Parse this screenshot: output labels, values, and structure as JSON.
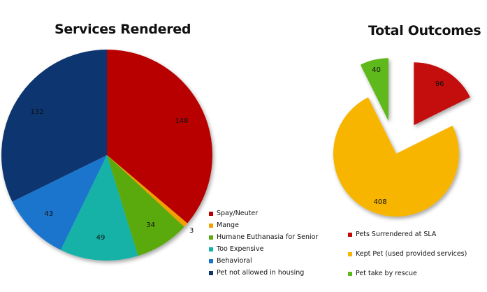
{
  "chart_data": [
    {
      "type": "pie",
      "title": "Services Rendered",
      "legend_position": "bottom-right",
      "slices": [
        {
          "label": "Spay/Neuter",
          "value": 148,
          "color": "#b80000"
        },
        {
          "label": "Mange",
          "value": 3,
          "color": "#f0a000"
        },
        {
          "label": "Humane Euthanasia for Senior",
          "value": 34,
          "color": "#5aaa10"
        },
        {
          "label": "Too Expensive",
          "value": 49,
          "color": "#14b2a8"
        },
        {
          "label": "Behavioral",
          "value": 43,
          "color": "#1a74cc"
        },
        {
          "label": "Pet not allowed in housing",
          "value": 132,
          "color": "#0a3570"
        }
      ]
    },
    {
      "type": "pie",
      "title": "Total Outcomes",
      "exploded": true,
      "legend_position": "bottom-right",
      "slices": [
        {
          "label": "Pets Surrendered at SLA",
          "value": 96,
          "color": "#c40808"
        },
        {
          "label": "Kept Pet (used provided services)",
          "value": 408,
          "color": "#f7b500"
        },
        {
          "label": "Pet take by rescue",
          "value": 40,
          "color": "#5fb81a"
        }
      ]
    }
  ]
}
